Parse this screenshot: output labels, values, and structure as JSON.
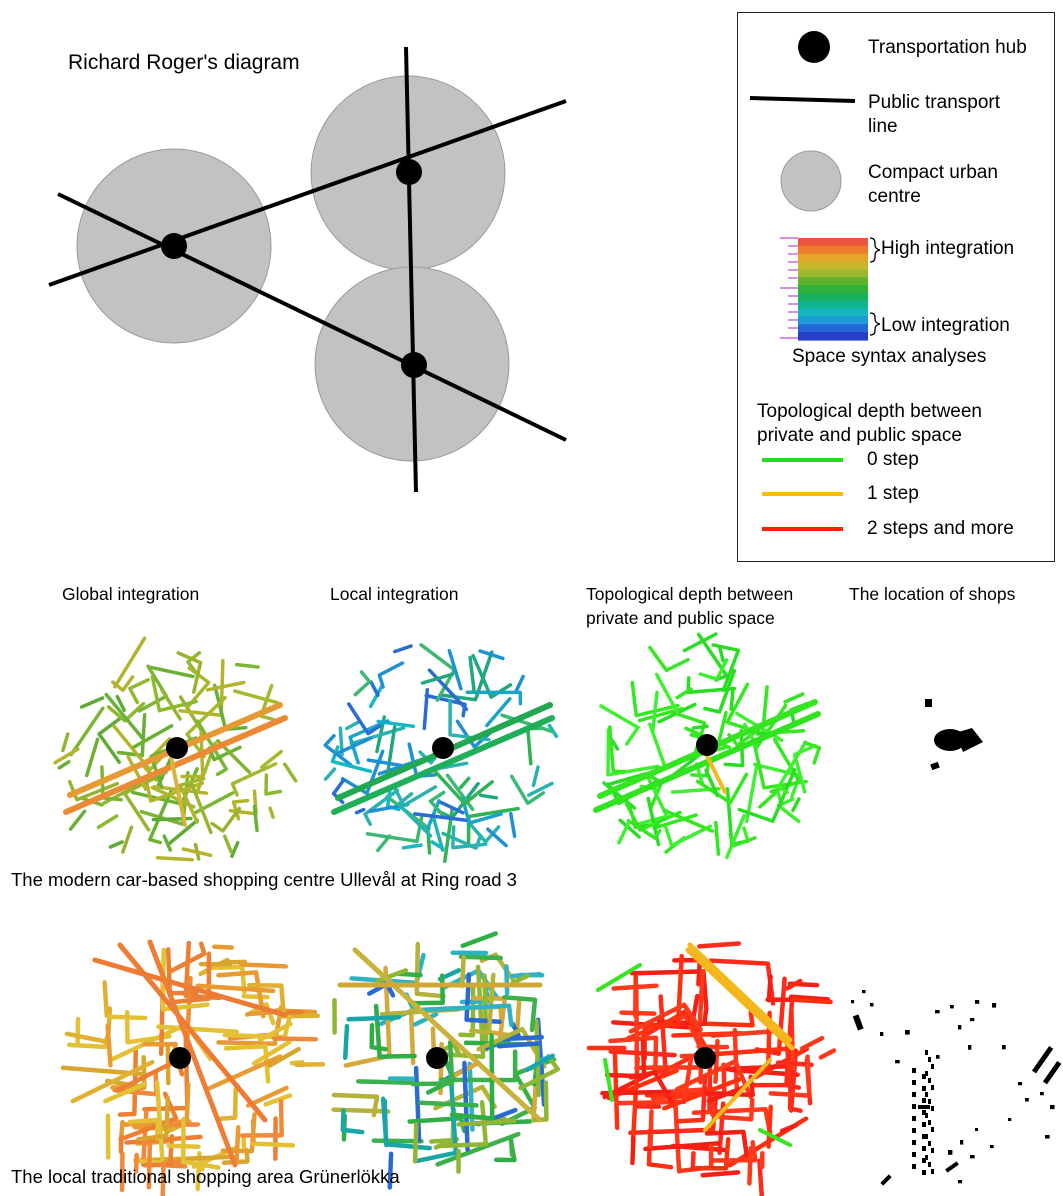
{
  "diagram": {
    "title": "Richard Roger's diagram"
  },
  "legend": {
    "hub": "Transportation hub",
    "line": "Public transport line",
    "line_l1": "Public transport",
    "line_l2": "line",
    "centre_l1": "Compact urban",
    "centre_l2": "centre",
    "high": "High integration",
    "low": "Low integration",
    "syntax": "Space syntax analyses",
    "depth_l1": "Topological depth between",
    "depth_l2": "private and public space",
    "steps": [
      {
        "label": "0 step",
        "color": "#22dd22"
      },
      {
        "label": "1 step",
        "color": "#ffbb00"
      },
      {
        "label": "2 steps and more",
        "color": "#ff2200"
      }
    ],
    "colorscale": [
      "#e8553a",
      "#ee7a2e",
      "#e4a52a",
      "#c9b52c",
      "#9cb830",
      "#62b232",
      "#2fb23a",
      "#18b05a",
      "#10b290",
      "#16b5c0",
      "#1f9ad8",
      "#2566d6",
      "#2a3fc8"
    ]
  },
  "columns": {
    "global": "Global integration",
    "local": "Local integration",
    "depth_l1": "Topological depth between",
    "depth_l2": "private and public space",
    "shops": "The location of shops"
  },
  "rows": {
    "ulleval": "The modern car-based shopping centre Ullevål at Ring road 3",
    "grunerlokka": "The local traditional shopping area Grünerlökka"
  },
  "colors": {
    "circle_fill": "#c2c2c2",
    "circle_stroke": "#9a9a9a",
    "hub": "#000000"
  }
}
